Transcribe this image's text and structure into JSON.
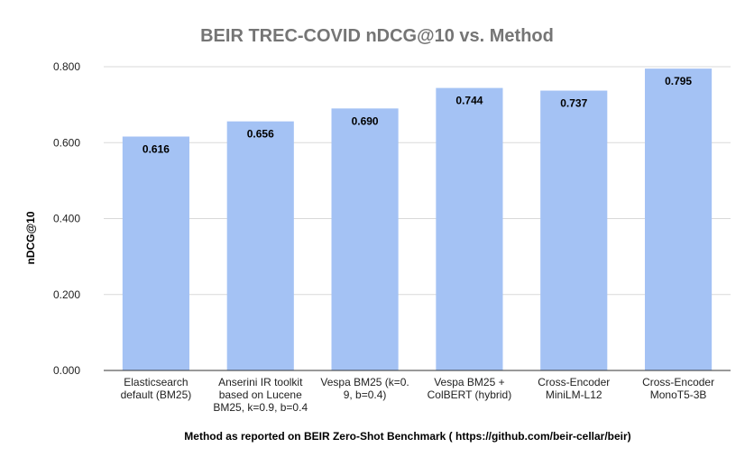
{
  "chart_data": {
    "type": "bar",
    "title": "BEIR TREC-COVID nDCG@10 vs. Method",
    "xlabel": "Method as reported on BEIR Zero-Shot Benchmark ( https://github.com/beir-cellar/beir)",
    "ylabel": "nDCG@10",
    "ylim": [
      0,
      0.8
    ],
    "yticks": [
      "0.000",
      "0.200",
      "0.400",
      "0.600",
      "0.800"
    ],
    "ytick_values": [
      0,
      0.2,
      0.4,
      0.6,
      0.8
    ],
    "grid": true,
    "legend": "none",
    "bar_color": "#a4c2f4",
    "categories": [
      [
        "Elasticsearch",
        "default (BM25)"
      ],
      [
        "Anserini IR toolkit",
        "based on Lucene",
        "BM25, k=0.9, b=0.4"
      ],
      [
        "Vespa BM25 (k=0.",
        "9, b=0.4)"
      ],
      [
        "Vespa BM25 +",
        "ColBERT (hybrid)"
      ],
      [
        "Cross-Encoder",
        "MiniLM-L12"
      ],
      [
        "Cross-Encoder",
        "MonoT5-3B"
      ]
    ],
    "values": [
      0.616,
      0.656,
      0.69,
      0.744,
      0.737,
      0.795
    ],
    "data_labels": [
      "0.616",
      "0.656",
      "0.690",
      "0.744",
      "0.737",
      "0.795"
    ]
  }
}
